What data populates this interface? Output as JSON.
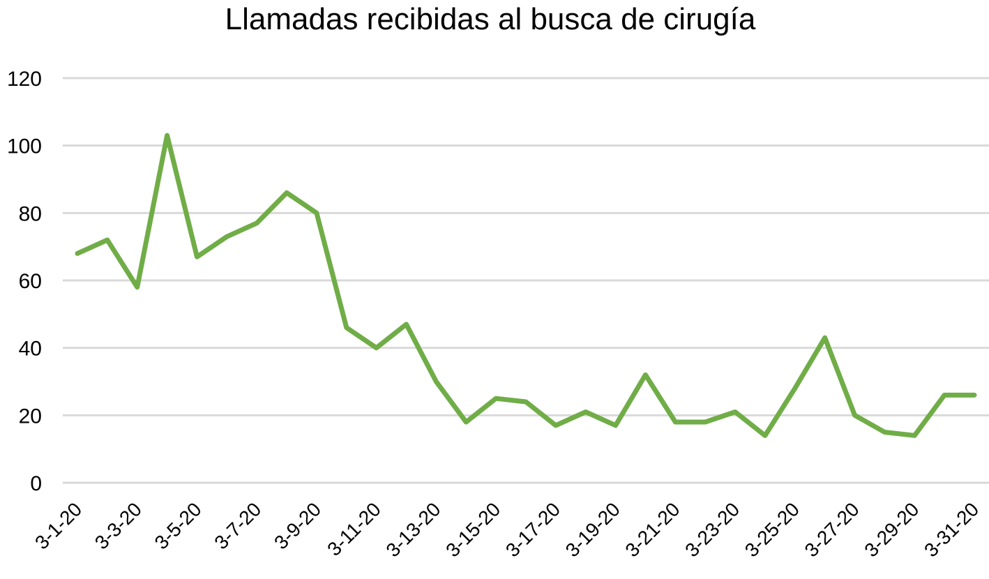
{
  "chart_data": {
    "type": "line",
    "title": "Llamadas recibidas al busca de cirugía",
    "xlabel": "",
    "ylabel": "",
    "ylim": [
      0,
      120
    ],
    "yticks": [
      0,
      20,
      40,
      60,
      80,
      100,
      120
    ],
    "grid": true,
    "legend": "none",
    "x": [
      "3-1-20",
      "3-2-20",
      "3-3-20",
      "3-4-20",
      "3-5-20",
      "3-6-20",
      "3-7-20",
      "3-8-20",
      "3-9-20",
      "3-10-20",
      "3-11-20",
      "3-12-20",
      "3-13-20",
      "3-14-20",
      "3-15-20",
      "3-16-20",
      "3-17-20",
      "3-18-20",
      "3-19-20",
      "3-20-20",
      "3-21-20",
      "3-22-20",
      "3-23-20",
      "3-24-20",
      "3-25-20",
      "3-26-20",
      "3-27-20",
      "3-28-20",
      "3-29-20",
      "3-30-20",
      "3-31-20"
    ],
    "x_tick_labels": [
      "3-1-20",
      "3-3-20",
      "3-5-20",
      "3-7-20",
      "3-9-20",
      "3-11-20",
      "3-13-20",
      "3-15-20",
      "3-17-20",
      "3-19-20",
      "3-21-20",
      "3-23-20",
      "3-25-20",
      "3-27-20",
      "3-29-20",
      "3-31-20"
    ],
    "series": [
      {
        "color": "#70ad47",
        "values": [
          68,
          72,
          58,
          103,
          67,
          73,
          77,
          86,
          80,
          46,
          40,
          47,
          30,
          18,
          25,
          24,
          17,
          21,
          17,
          32,
          18,
          18,
          21,
          14,
          28,
          43,
          20,
          15,
          14,
          26,
          26
        ]
      }
    ]
  }
}
